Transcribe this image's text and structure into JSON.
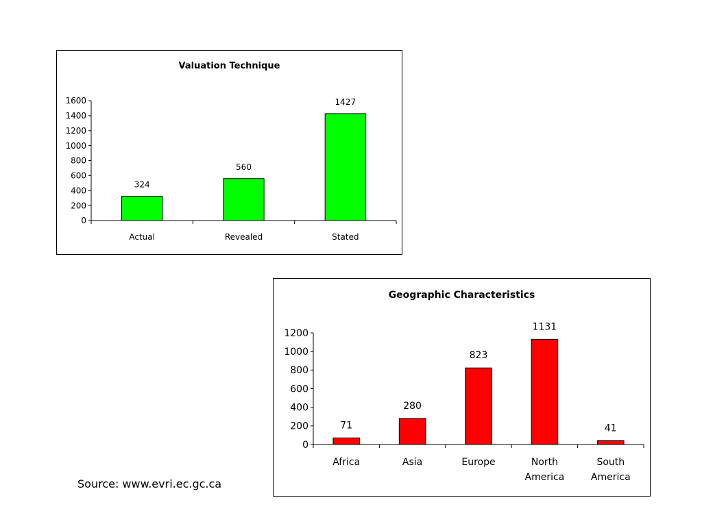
{
  "source_text": "Source: www.evri.ec.gc.ca",
  "chart_data": [
    {
      "type": "bar",
      "title": "Valuation Technique",
      "categories": [
        "Actual",
        "Revealed",
        "Stated"
      ],
      "values": [
        324,
        560,
        1427
      ],
      "ylim": [
        0,
        1600
      ],
      "yticks": [
        0,
        200,
        400,
        600,
        800,
        1000,
        1200,
        1400,
        1600
      ],
      "bar_color": "#00ff00",
      "grid": false,
      "legend": false
    },
    {
      "type": "bar",
      "title": "Geographic Characteristics",
      "categories": [
        "Africa",
        "Asia",
        "Europe",
        "North America",
        "South America"
      ],
      "values": [
        71,
        280,
        823,
        1131,
        41
      ],
      "ylim": [
        0,
        1200
      ],
      "yticks": [
        0,
        200,
        400,
        600,
        800,
        1000,
        1200
      ],
      "bar_color": "#ff0000",
      "grid": false,
      "legend": false
    }
  ]
}
